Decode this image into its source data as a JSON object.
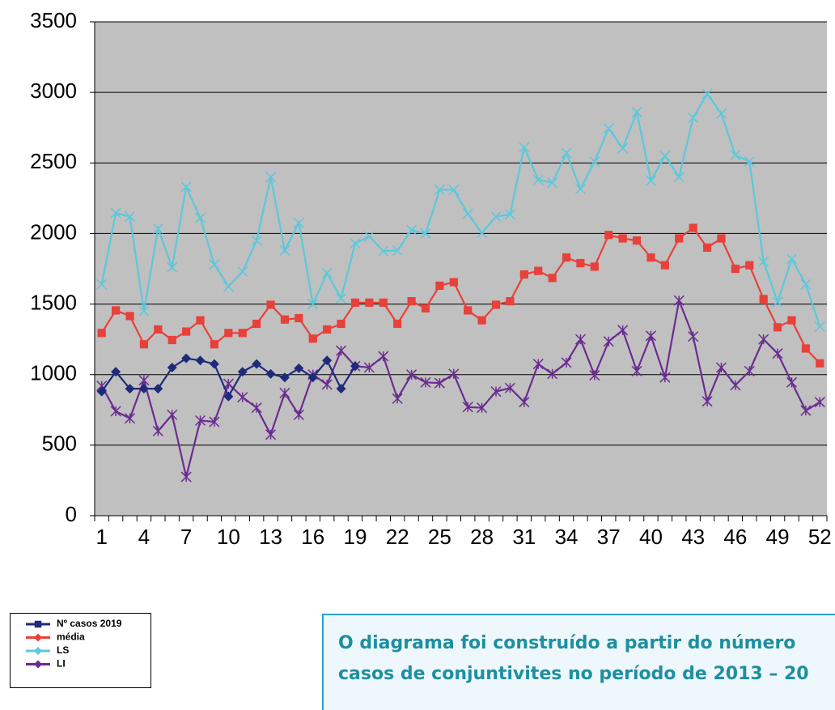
{
  "chart_data": {
    "type": "line",
    "categories": [
      1,
      null,
      null,
      4,
      null,
      null,
      7,
      null,
      null,
      10,
      null,
      null,
      13,
      null,
      null,
      16,
      null,
      null,
      19,
      null,
      null,
      22,
      null,
      null,
      25,
      null,
      null,
      28,
      null,
      null,
      31,
      null,
      null,
      34,
      null,
      null,
      37,
      null,
      null,
      40,
      null,
      null,
      43,
      null,
      null,
      46,
      null,
      null,
      49,
      null,
      null,
      52
    ],
    "ylim": [
      0,
      3500
    ],
    "yticks": [
      0,
      500,
      1000,
      1500,
      2000,
      2500,
      3000,
      3500
    ],
    "grid": true,
    "plot_background": "#c0c0c0",
    "series": [
      {
        "name": "Nº casos 2019",
        "color": "#1f2a7a",
        "marker": "diamond",
        "values": [
          880,
          1020,
          900,
          900,
          900,
          1050,
          1115,
          1100,
          1075,
          845,
          1020,
          1075,
          1005,
          980,
          1045,
          980,
          1100,
          900,
          1060,
          null,
          null,
          null,
          null,
          null,
          null,
          null,
          null,
          null,
          null,
          null,
          null,
          null,
          null,
          null,
          null,
          null,
          null,
          null,
          null,
          null,
          null,
          null,
          null,
          null,
          null,
          null,
          null,
          null,
          null,
          null,
          null,
          null
        ]
      },
      {
        "name": "média",
        "color": "#e8403a",
        "marker": "square",
        "values": [
          1295,
          1455,
          1415,
          1215,
          1320,
          1245,
          1305,
          1385,
          1215,
          1295,
          1295,
          1360,
          1495,
          1390,
          1400,
          1255,
          1320,
          1360,
          1510,
          1510,
          1510,
          1360,
          1520,
          1470,
          1630,
          1655,
          1455,
          1385,
          1495,
          1520,
          1710,
          1735,
          1685,
          1830,
          1790,
          1765,
          1990,
          1965,
          1950,
          1830,
          1775,
          1965,
          2040,
          1900,
          1965,
          1750,
          1775,
          1535,
          1335,
          1385,
          1185,
          1080
        ]
      },
      {
        "name": "LS",
        "color": "#5bc8dc",
        "marker": "cross",
        "values": [
          1640,
          2145,
          2120,
          1450,
          2035,
          1760,
          2330,
          2110,
          1780,
          1625,
          1730,
          1950,
          2400,
          1880,
          2075,
          1500,
          1720,
          1540,
          1930,
          1980,
          1875,
          1880,
          2025,
          2000,
          2310,
          2310,
          2140,
          2005,
          2120,
          2135,
          2610,
          2380,
          2360,
          2570,
          2315,
          2510,
          2745,
          2605,
          2860,
          2375,
          2550,
          2400,
          2820,
          2990,
          2850,
          2555,
          2510,
          1800,
          1515,
          1820,
          1640,
          1340
        ]
      },
      {
        "name": "LI",
        "color": "#6b2c91",
        "marker": "star",
        "values": [
          920,
          740,
          690,
          960,
          600,
          715,
          275,
          675,
          665,
          935,
          840,
          765,
          575,
          870,
          715,
          1000,
          930,
          1170,
          1060,
          1050,
          1130,
          830,
          1000,
          945,
          940,
          1005,
          770,
          765,
          880,
          905,
          805,
          1075,
          1005,
          1085,
          1250,
          995,
          1235,
          1315,
          1025,
          1275,
          980,
          1525,
          1270,
          810,
          1050,
          925,
          1025,
          1250,
          1150,
          945,
          745,
          805
        ]
      }
    ]
  },
  "note": {
    "lines": [
      "O diagrama foi construído a partir do número",
      "casos de conjuntivites no período de 2013 – 20"
    ]
  }
}
